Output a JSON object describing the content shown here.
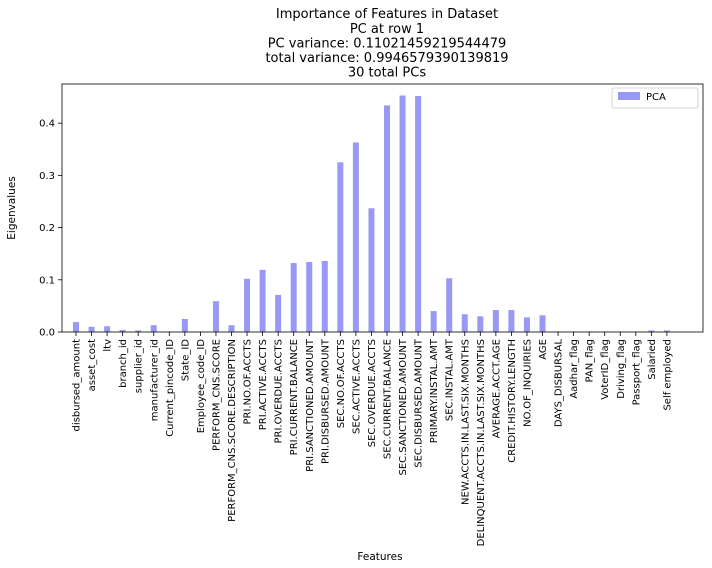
{
  "chart_data": {
    "type": "bar",
    "title_lines": [
      "Importance of Features in Dataset",
      "PC at row 1",
      "PC variance: 0.11021459219544479",
      "total variance: 0.9946579390139819",
      "30 total PCs"
    ],
    "xlabel": "Features",
    "ylabel": "Eigenvalues",
    "ylim": [
      0,
      0.475
    ],
    "yticks": [
      0.0,
      0.1,
      0.2,
      0.3,
      0.4
    ],
    "ytick_labels": [
      "0.0",
      "0.1",
      "0.2",
      "0.3",
      "0.4"
    ],
    "grid": false,
    "legend_position": "top-right",
    "series": [
      {
        "name": "PCA",
        "color": "#9999f5"
      }
    ],
    "categories": [
      "disbursed_amount",
      "asset_cost",
      "ltv",
      "branch_id",
      "supplier_id",
      "manufacturer_id",
      "Current_pincode_ID",
      "State_ID",
      "Employee_code_ID",
      "PERFORM_CNS.SCORE",
      "PERFORM_CNS.SCORE.DESCRIPTION",
      "PRI.NO.OF.ACCTS",
      "PRI.ACTIVE.ACCTS",
      "PRI.OVERDUE.ACCTS",
      "PRI.CURRENT.BALANCE",
      "PRI.SANCTIONED.AMOUNT",
      "PRI.DISBURSED.AMOUNT",
      "SEC.NO.OF.ACCTS",
      "SEC.ACTIVE.ACCTS",
      "SEC.OVERDUE.ACCTS",
      "SEC.CURRENT.BALANCE",
      "SEC.SANCTIONED.AMOUNT",
      "SEC.DISBURSED.AMOUNT",
      "PRIMARY.INSTAL.AMT",
      "SEC.INSTAL.AMT",
      "NEW.ACCTS.IN.LAST.SIX.MONTHS",
      "DELINQUENT.ACCTS.IN.LAST.SIX.MONTHS",
      "AVERAGE.ACCT.AGE",
      "CREDIT.HISTORY.LENGTH",
      "NO.OF_INQUIRIES",
      "AGE",
      "DAYS_DISBURSAL",
      "Aadhar_flag",
      "PAN_flag",
      "VoterID_flag",
      "Driving_flag",
      "Passport_flag",
      "Salaried",
      "Self employed"
    ],
    "values": [
      0.019,
      0.01,
      0.011,
      0.004,
      0.003,
      0.013,
      0.001,
      0.025,
      0.001,
      0.059,
      0.013,
      0.102,
      0.119,
      0.071,
      0.132,
      0.134,
      0.136,
      0.325,
      0.363,
      0.237,
      0.434,
      0.453,
      0.452,
      0.04,
      0.103,
      0.034,
      0.03,
      0.042,
      0.042,
      0.028,
      0.032,
      0.001,
      0.001,
      0.001,
      0.001,
      0.0005,
      0.0005,
      0.003,
      0.003
    ]
  }
}
